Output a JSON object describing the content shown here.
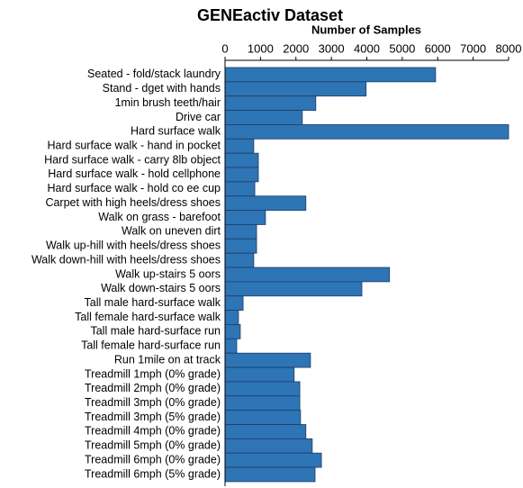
{
  "chart_data": {
    "type": "hbar",
    "title": "GENEactiv Dataset",
    "x_label": "Number of Samples",
    "categories": [
      "Seated - fold/stack laundry",
      "Stand -  dget with hands",
      "1min brush teeth/hair",
      "Drive car",
      "Hard surface walk",
      "Hard surface walk - hand in pocket",
      "Hard surface walk - carry 8lb object",
      "Hard surface walk - hold cellphone",
      "Hard surface walk - hold co  ee cup",
      "Carpet with high heels/dress shoes",
      "Walk on grass - barefoot",
      "Walk on uneven dirt",
      "Walk up-hill with heels/dress shoes",
      "Walk down-hill with heels/dress shoes",
      "Walk up-stairs 5  oors",
      "Walk down-stairs 5  oors",
      "Tall male hard-surface walk",
      "Tall female hard-surface walk",
      "Tall male hard-surface run",
      "Tall female hard-surface run",
      "Run 1mile on  at track",
      "Treadmill 1mph (0% grade)",
      "Treadmill 2mph (0% grade)",
      "Treadmill 3mph (0% grade)",
      "Treadmill 3mph (5% grade)",
      "Treadmill 4mph (0% grade)",
      "Treadmill 5mph (0% grade)",
      "Treadmill 6mph (0% grade)",
      "Treadmill 6mph (5% grade)"
    ],
    "values": [
      5940,
      3980,
      2560,
      2180,
      8000,
      810,
      940,
      940,
      840,
      2280,
      1140,
      890,
      890,
      810,
      4640,
      3860,
      510,
      380,
      430,
      330,
      2410,
      1950,
      2110,
      2110,
      2130,
      2280,
      2460,
      2720,
      2540
    ],
    "color": "#2e75b6",
    "xlim": [
      0,
      8000
    ],
    "xticks": [
      0,
      1000,
      2000,
      3000,
      4000,
      5000,
      6000,
      7000,
      8000
    ]
  }
}
